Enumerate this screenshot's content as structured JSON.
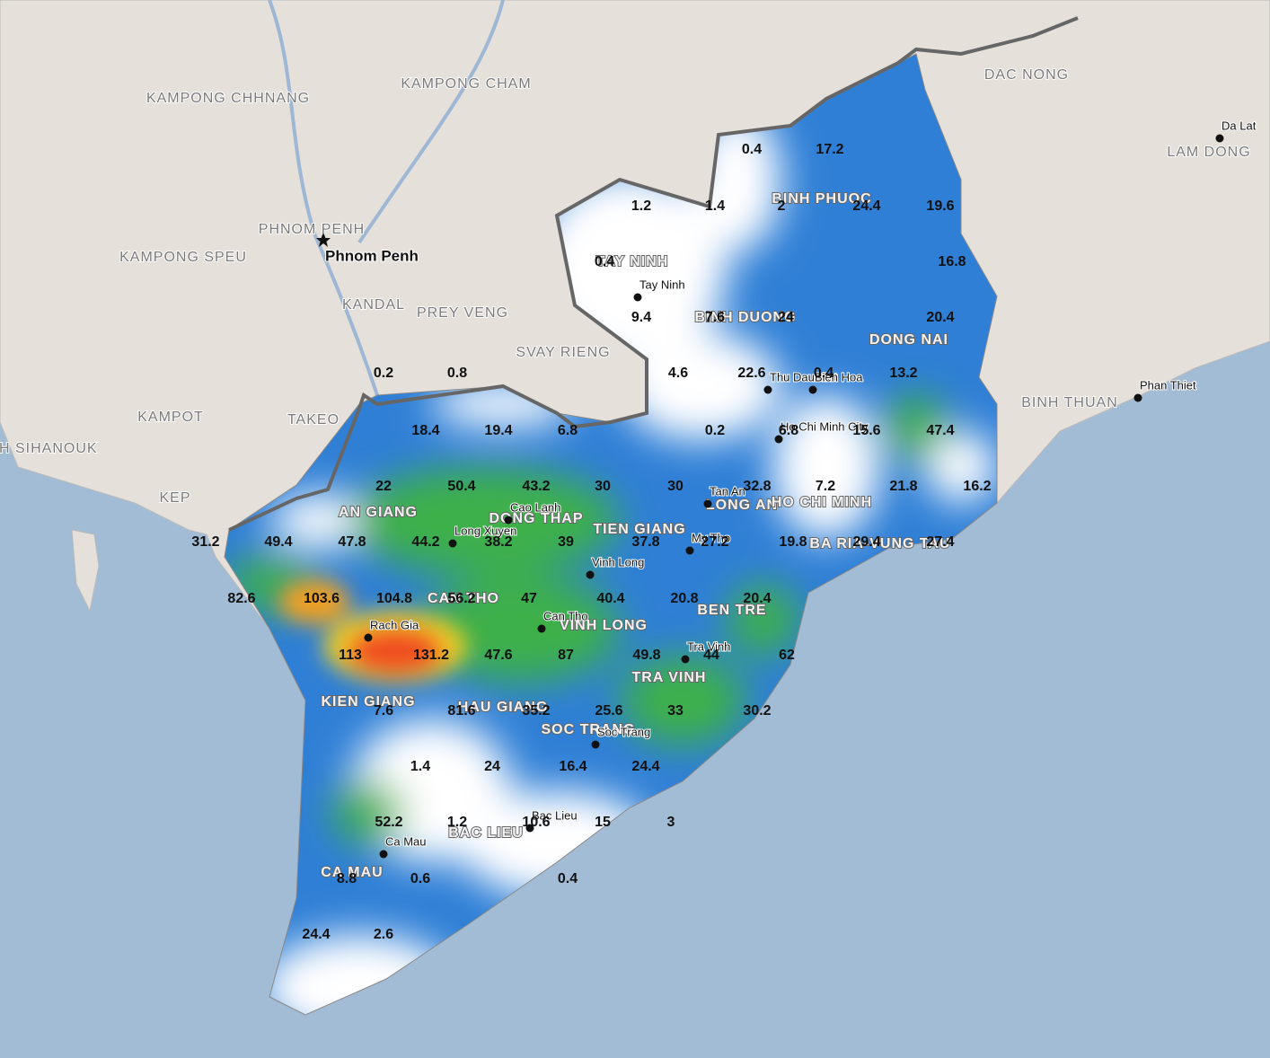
{
  "regions": [
    "KAMPONG CHHNANG",
    "KAMPONG CHAM",
    "DAC NONG",
    "LAM DONG",
    "BINH PHUOC",
    "PHNOM PENH",
    "KAMPONG SPEU",
    "TAY NINH",
    "KANDAL",
    "PREY VENG",
    "BINH DUONG",
    "DONG NAI",
    "SVAY RIENG",
    "BINH THUAN",
    "KAMPOT",
    "TAKEO",
    "PREAH SIHANOUK",
    "KEP",
    "AN GIANG",
    "DONG THAP",
    "TIEN GIANG",
    "LONG AN",
    "HO CHI MINH",
    "BA RIA-VUNG TAU",
    "CAN THO",
    "VINH LONG",
    "BEN TRE",
    "TRA VINH",
    "KIEN GIANG",
    "HAU GIANG",
    "SOC TRANG",
    "BAC LIEU",
    "CA MAU"
  ],
  "cities": [
    "Da Lat",
    "Phnom Penh",
    "Tay Ninh",
    "Thu Dau Mot",
    "Bien Hoa",
    "Ho Chi Minh City",
    "Phan Thiet",
    "Tan An",
    "Cao Lanh",
    "Long Xuyen",
    "My Tho",
    "Vinh Long",
    "Rach Gia",
    "Can Tho",
    "Tra Vinh",
    "Soc Trang",
    "Bac Lieu",
    "Ca Mau"
  ],
  "rainfall": [
    0.4,
    17.2,
    1.2,
    1.4,
    2,
    24.4,
    19.6,
    16.8,
    0.4,
    9.4,
    7.6,
    24,
    20.4,
    4.6,
    22.6,
    0.4,
    13.2,
    0.2,
    0.8,
    18.4,
    19.4,
    6.8,
    0.2,
    6.8,
    15.6,
    47.4,
    22,
    50.4,
    43.2,
    30,
    30,
    32.8,
    7.2,
    21.8,
    16.2,
    31.2,
    49.4,
    47.8,
    44.2,
    38.2,
    39,
    37.8,
    27.2,
    19.8,
    29.4,
    27.4,
    82.6,
    103.6,
    104.8,
    56.2,
    47,
    40.4,
    20.8,
    20.4,
    113,
    131.2,
    47.6,
    87,
    49.8,
    44,
    62,
    7.6,
    81.6,
    35.2,
    25.6,
    33,
    30.2,
    1.4,
    24,
    16.4,
    24.4,
    52.2,
    1.2,
    10.6,
    15,
    3,
    8.8,
    0.6,
    0.4,
    24.4,
    2.6
  ]
}
